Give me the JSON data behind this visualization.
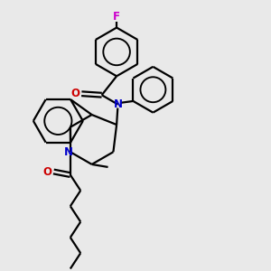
{
  "background_color": "#e9e9e9",
  "bond_color": "#000000",
  "N_color": "#0000cc",
  "O_color": "#cc0000",
  "F_color": "#cc00cc",
  "line_width": 1.6,
  "figsize": [
    3.0,
    3.0
  ],
  "dpi": 100,
  "xlim": [
    0,
    10
  ],
  "ylim": [
    0,
    10
  ]
}
